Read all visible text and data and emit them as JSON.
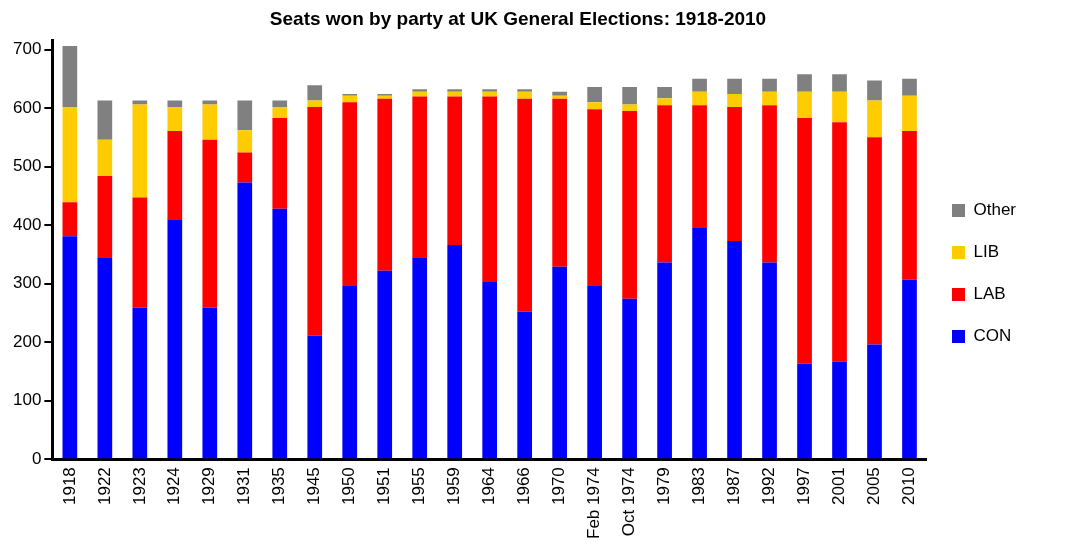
{
  "chart_data": {
    "type": "bar",
    "title": "Seats won by party at UK General Elections: 1918-2010",
    "categories": [
      "1918",
      "1922",
      "1923",
      "1924",
      "1929",
      "1931",
      "1935",
      "1945",
      "1950",
      "1951",
      "1955",
      "1959",
      "1964",
      "1966",
      "1970",
      "Feb 1974",
      "Oct 1974",
      "1979",
      "1983",
      "1987",
      "1992",
      "1997",
      "2001",
      "2005",
      "2010"
    ],
    "stacked": true,
    "series": [
      {
        "name": "CON",
        "color": "#0000ff",
        "values": [
          381,
          344,
          259,
          410,
          259,
          473,
          428,
          211,
          296,
          322,
          344,
          366,
          304,
          252,
          329,
          296,
          274,
          336,
          395,
          373,
          336,
          163,
          167,
          196,
          307
        ]
      },
      {
        "name": "LAB",
        "color": "#ff0000",
        "values": [
          58,
          140,
          188,
          151,
          287,
          51,
          155,
          391,
          314,
          294,
          276,
          254,
          316,
          364,
          287,
          302,
          321,
          269,
          210,
          229,
          269,
          420,
          409,
          354,
          254
        ]
      },
      {
        "name": "LIB",
        "color": "#ffcc00",
        "values": [
          163,
          62,
          159,
          41,
          60,
          38,
          19,
          11,
          11,
          5,
          8,
          8,
          8,
          12,
          5,
          12,
          11,
          12,
          23,
          22,
          23,
          45,
          52,
          63,
          60
        ]
      },
      {
        "name": "Other",
        "color": "#808080",
        "values": [
          104,
          67,
          7,
          11,
          7,
          51,
          11,
          26,
          3,
          3,
          4,
          4,
          4,
          4,
          7,
          26,
          30,
          19,
          22,
          26,
          22,
          30,
          30,
          34,
          29
        ]
      }
    ],
    "ylim": [
      0,
      715
    ],
    "yticks": [
      0,
      100,
      200,
      300,
      400,
      500,
      600,
      700
    ],
    "grid": false,
    "legend": "right"
  }
}
